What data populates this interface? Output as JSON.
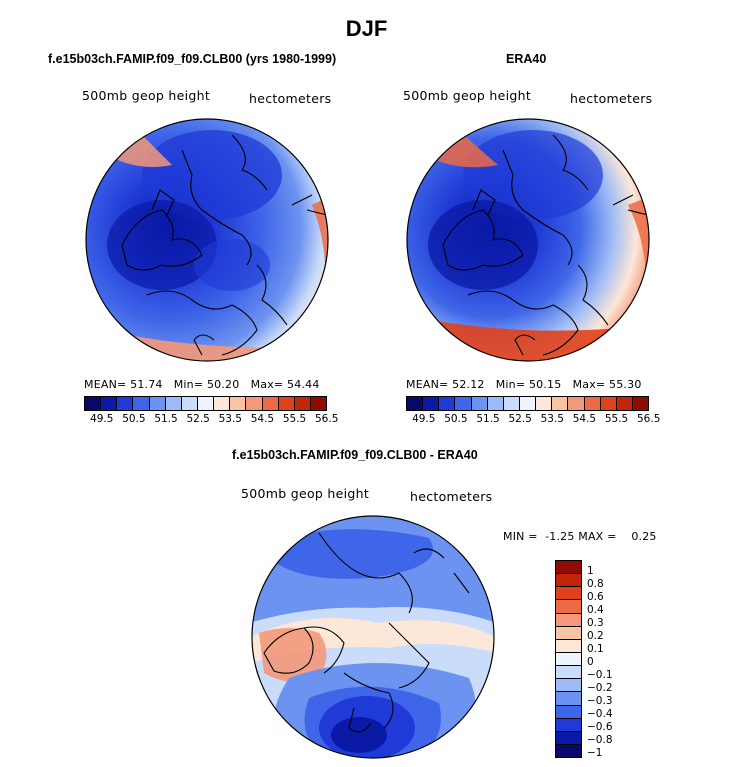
{
  "figure": {
    "title": "DJF"
  },
  "panels": [
    {
      "title": "f.e15b03ch.FAMIP.f09_f09.CLB00 (yrs 1980-1999)",
      "left_label": "500mb geop height",
      "right_label": "hectometers",
      "stats": {
        "mean_label": "MEAN=",
        "mean": "51.74",
        "min_label": "Min=",
        "min": "50.20",
        "max_label": "Max=",
        "max": "54.44"
      }
    },
    {
      "title": "ERA40",
      "left_label": "500mb geop height",
      "right_label": "hectometers",
      "stats": {
        "mean_label": "MEAN=",
        "mean": "52.12",
        "min_label": "Min=",
        "min": "50.15",
        "max_label": "Max=",
        "max": "55.30"
      }
    },
    {
      "title": "f.e15b03ch.FAMIP.f09_f09.CLB00 - ERA40",
      "left_label": "500mb geop height",
      "right_label": "hectometers",
      "stats": {
        "min_label": "MIN =",
        "min": "-1.25",
        "max_label": "MAX =",
        "max": "0.25"
      }
    }
  ],
  "colorbar_horizontal": {
    "ticks": [
      "49.5",
      "50.5",
      "51.5",
      "52.5",
      "53.5",
      "54.5",
      "55.5",
      "56.5"
    ],
    "colors": [
      "#08086b",
      "#0a1aa6",
      "#1f3ad6",
      "#3f66e8",
      "#6d93f0",
      "#9dbbf6",
      "#c9dcfa",
      "#eef3fd",
      "#fde7d8",
      "#f9c4a6",
      "#f3987a",
      "#ec6a45",
      "#e0401c",
      "#c12609",
      "#8f0b04"
    ]
  },
  "colorbar_vertical": {
    "labels": [
      "1",
      "0.8",
      "0.6",
      "0.4",
      "0.3",
      "0.2",
      "0.1",
      "0",
      "−0.1",
      "−0.2",
      "−0.3",
      "−0.4",
      "−0.6",
      "−0.8",
      "−1"
    ],
    "colors": [
      "#8f0b04",
      "#c12609",
      "#e0401c",
      "#ec6a45",
      "#f3987a",
      "#f9c4a6",
      "#fde7d8",
      "#eef3fd",
      "#c9dcfa",
      "#9dbbf6",
      "#6d93f0",
      "#3f66e8",
      "#1f3ad6",
      "#0a1aa6",
      "#08086b"
    ]
  },
  "colors": {
    "deep_blue": "#0a1aa6",
    "mid_blue": "#3f66e8",
    "light_blue": "#9dbbf6",
    "pale": "#fde7d8",
    "orange": "#ec6a45",
    "coastline": "#000000"
  }
}
